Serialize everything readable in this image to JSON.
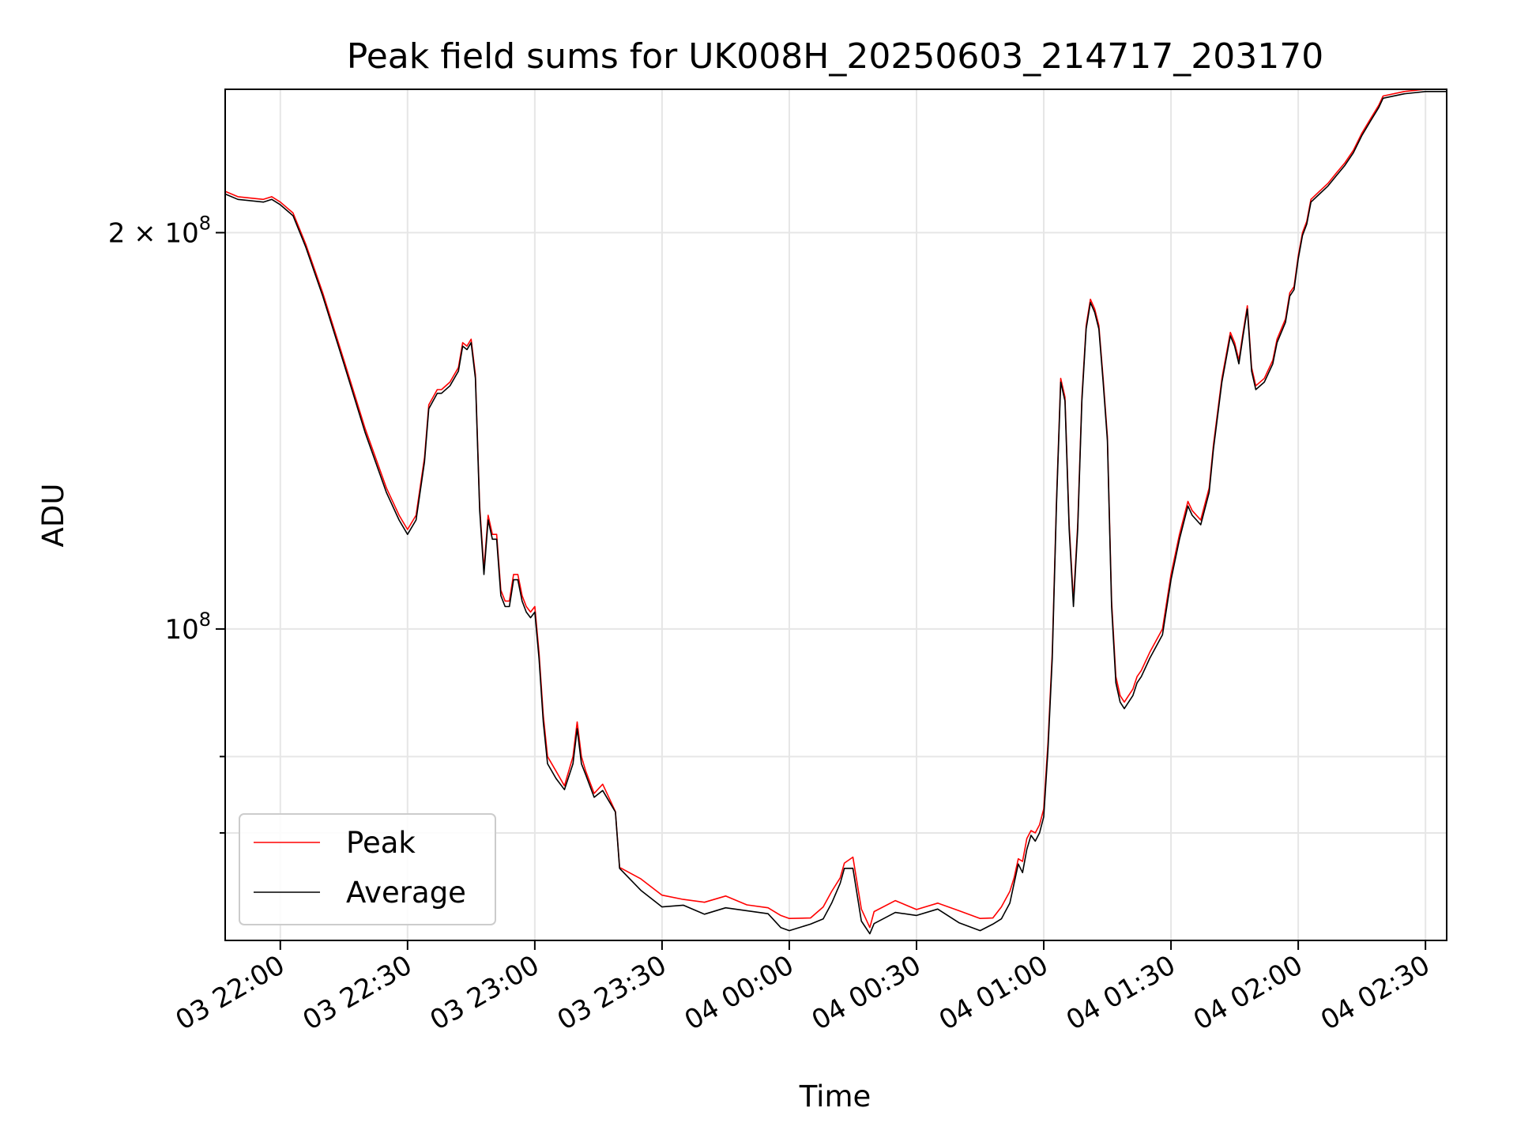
{
  "chart_data": {
    "type": "line",
    "title": "Peak field sums for UK008H_20250603_214717_203170",
    "xlabel": "Time",
    "ylabel": "ADU",
    "yscale": "log",
    "ylim": [
      58000000,
      257000000
    ],
    "xlim": [
      "2025-06-03 21:47",
      "2025-06-04 02:35"
    ],
    "grid": true,
    "legend_position": "lower-left",
    "x_ticks": [
      "03 22:00",
      "03 22:30",
      "03 23:00",
      "03 23:30",
      "04 00:00",
      "04 00:30",
      "04 01:00",
      "04 01:30",
      "04 02:00",
      "04 02:30"
    ],
    "y_ticks": [
      {
        "value": 100000000,
        "label": "10",
        "exp": "8"
      },
      {
        "value": 200000000,
        "label": "2 × 10",
        "exp": "8"
      }
    ],
    "y_minor_ticks": [
      70000000,
      80000000
    ],
    "x": [
      "21:47",
      "21:50",
      "21:56",
      "21:58",
      "22:00",
      "22:03",
      "22:06",
      "22:10",
      "22:15",
      "22:20",
      "22:25",
      "22:28",
      "22:30",
      "22:32",
      "22:34",
      "22:35",
      "22:37",
      "22:38",
      "22:40",
      "22:42",
      "22:43",
      "22:44",
      "22:45",
      "22:46",
      "22:47",
      "22:48",
      "22:49",
      "22:50",
      "22:51",
      "22:52",
      "22:53",
      "22:54",
      "22:55",
      "22:56",
      "22:57",
      "22:58",
      "22:59",
      "23:00",
      "23:01",
      "23:02",
      "23:03",
      "23:05",
      "23:07",
      "23:09",
      "23:10",
      "23:11",
      "23:12",
      "23:14",
      "23:16",
      "23:19",
      "23:20",
      "23:25",
      "23:30",
      "23:35",
      "23:40",
      "23:45",
      "23:50",
      "23:55",
      "23:58",
      "00:00",
      "00:05",
      "00:08",
      "00:10",
      "00:12",
      "00:13",
      "00:15",
      "00:17",
      "00:19",
      "00:20",
      "00:25",
      "00:30",
      "00:35",
      "00:40",
      "00:45",
      "00:48",
      "00:50",
      "00:52",
      "00:53",
      "00:54",
      "00:55",
      "00:56",
      "00:57",
      "00:58",
      "00:59",
      "01:00",
      "01:01",
      "01:02",
      "01:03",
      "01:04",
      "01:05",
      "01:06",
      "01:07",
      "01:08",
      "01:09",
      "01:10",
      "01:11",
      "01:12",
      "01:13",
      "01:14",
      "01:15",
      "01:16",
      "01:17",
      "01:18",
      "01:19",
      "01:20",
      "01:21",
      "01:22",
      "01:23",
      "01:25",
      "01:28",
      "01:30",
      "01:32",
      "01:34",
      "01:35",
      "01:37",
      "01:39",
      "01:40",
      "01:42",
      "01:44",
      "01:45",
      "01:46",
      "01:47",
      "01:48",
      "01:49",
      "01:50",
      "01:52",
      "01:54",
      "01:55",
      "01:57",
      "01:58",
      "01:59",
      "02:00",
      "02:01",
      "02:02",
      "02:03",
      "02:05",
      "02:07",
      "02:09",
      "02:11",
      "02:13",
      "02:15",
      "02:17",
      "02:19",
      "02:20",
      "02:25",
      "02:30",
      "02:35"
    ],
    "series": [
      {
        "name": "Peak",
        "color": "#ff0000",
        "values": [
          215000000,
          213000000,
          212000000,
          213000000,
          211000000,
          207000000,
          196000000,
          180000000,
          160000000,
          142000000,
          128000000,
          122000000,
          119000000,
          122000000,
          135000000,
          148000000,
          152000000,
          152000000,
          154000000,
          158000000,
          165000000,
          164000000,
          166000000,
          156000000,
          124000000,
          111000000,
          122000000,
          118000000,
          118000000,
          107000000,
          105000000,
          105000000,
          110000000,
          110000000,
          106000000,
          104000000,
          103000000,
          104000000,
          96000000,
          86000000,
          80000000,
          78000000,
          76000000,
          80000000,
          85000000,
          80000000,
          78000000,
          75000000,
          76000000,
          73000000,
          66000000,
          64500000,
          62500000,
          62500000,
          62000000,
          62500000,
          62000000,
          61500000,
          60500000,
          60000000,
          60500000,
          61500000,
          63000000,
          65000000,
          66500000,
          67000000,
          61000000,
          59500000,
          61000000,
          62000000,
          61500000,
          62000000,
          61000000,
          60000000,
          60500000,
          61500000,
          63000000,
          65000000,
          67000000,
          66500000,
          69000000,
          70500000,
          70000000,
          71000000,
          73000000,
          82000000,
          96000000,
          125000000,
          155000000,
          150000000,
          120000000,
          105000000,
          120000000,
          150000000,
          170000000,
          178000000,
          175000000,
          170000000,
          155000000,
          140000000,
          105000000,
          92000000,
          89000000,
          88000000,
          89000000,
          90000000,
          92000000,
          93000000,
          96000000,
          100000000,
          110000000,
          118000000,
          125000000,
          123000000,
          121000000,
          128000000,
          138000000,
          155000000,
          168000000,
          165000000,
          160000000,
          168000000,
          176000000,
          158000000,
          153000000,
          155000000,
          160000000,
          166000000,
          172000000,
          180000000,
          182000000,
          192000000,
          200000000,
          204000000,
          212000000,
          215000000,
          218000000,
          222000000,
          226000000,
          231000000,
          238000000,
          244000000,
          250000000,
          254000000,
          256000000,
          257000000,
          257000000
        ]
      },
      {
        "name": "Average",
        "color": "#000000",
        "values": [
          214000000,
          212000000,
          211000000,
          212000000,
          210000000,
          206000000,
          195000000,
          179000000,
          159000000,
          141000000,
          127000000,
          121000000,
          118000000,
          121000000,
          134000000,
          147000000,
          151000000,
          151000000,
          153000000,
          157000000,
          164000000,
          163000000,
          165000000,
          155000000,
          123000000,
          110000000,
          121000000,
          117000000,
          117000000,
          106000000,
          104000000,
          104000000,
          109000000,
          109000000,
          105000000,
          103000000,
          102000000,
          103000000,
          95000000,
          85000000,
          79000000,
          77000000,
          75500000,
          79000000,
          84000000,
          79000000,
          77500000,
          74500000,
          75500000,
          72500000,
          65500000,
          63500000,
          61500000,
          61500000,
          61000000,
          61500000,
          61000000,
          60500000,
          59500000,
          59000000,
          59500000,
          60500000,
          62000000,
          64000000,
          65500000,
          66000000,
          60000000,
          58500000,
          60000000,
          61000000,
          60500000,
          61000000,
          60000000,
          59000000,
          59500000,
          60500000,
          62000000,
          64000000,
          66000000,
          65500000,
          68000000,
          69500000,
          69000000,
          70000000,
          72000000,
          81000000,
          95000000,
          124000000,
          154000000,
          149000000,
          119000000,
          104000000,
          119000000,
          149000000,
          169000000,
          177000000,
          174000000,
          169000000,
          154000000,
          139000000,
          104000000,
          91000000,
          88000000,
          87000000,
          88000000,
          89000000,
          91000000,
          92000000,
          95000000,
          99000000,
          109000000,
          117000000,
          124000000,
          122000000,
          120000000,
          127000000,
          137000000,
          154000000,
          167000000,
          164000000,
          159000000,
          167000000,
          175000000,
          157000000,
          152000000,
          154000000,
          159000000,
          165000000,
          171000000,
          179000000,
          181000000,
          191000000,
          199000000,
          203000000,
          211000000,
          214000000,
          217000000,
          221000000,
          225000000,
          230000000,
          237000000,
          243000000,
          249000000,
          253000000,
          255000000,
          256000000,
          256000000
        ]
      }
    ]
  }
}
